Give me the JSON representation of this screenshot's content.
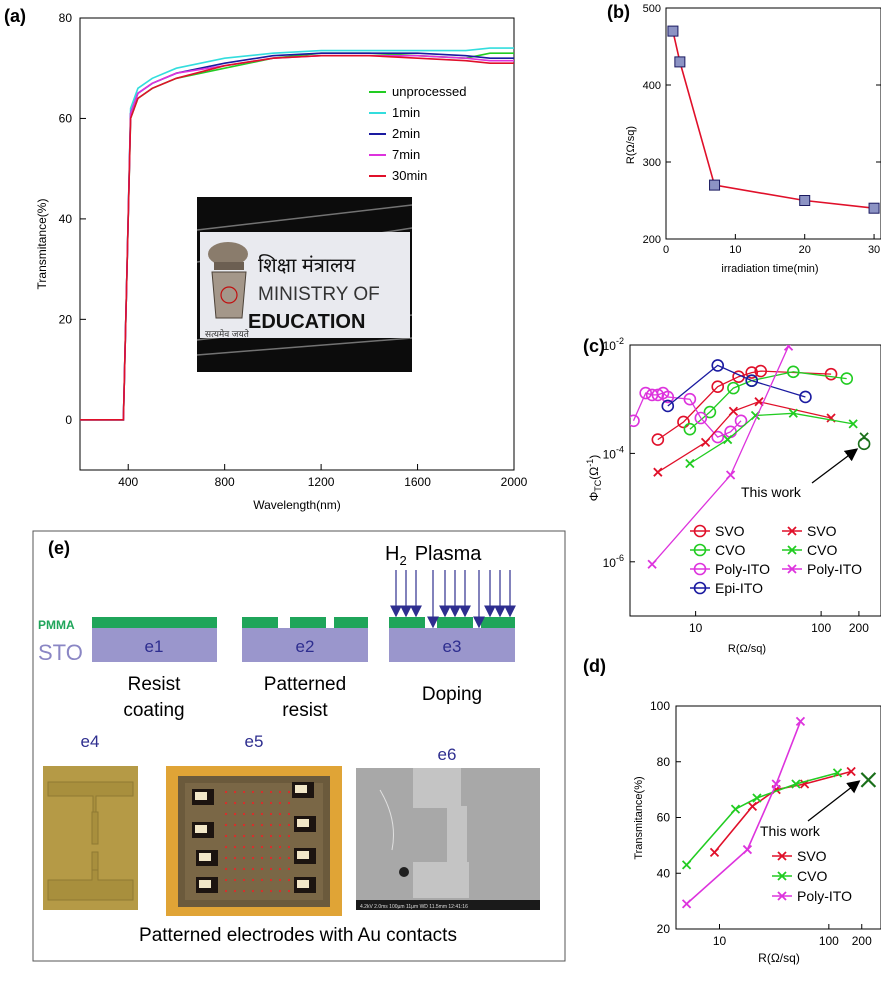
{
  "chart_data": [
    {
      "panel": "(a)",
      "type": "line",
      "xlabel": "Wavelength(nm)",
      "ylabel": "Transmitance(%)",
      "xlim": [
        200,
        2000
      ],
      "ylim": [
        -10,
        80
      ],
      "xticks": [
        400,
        800,
        1200,
        1600,
        2000
      ],
      "yticks": [
        0,
        20,
        40,
        60,
        80
      ],
      "legend_placement": "right",
      "series": [
        {
          "name": "unprocessed",
          "color": "#22cc22",
          "x": [
            200,
            380,
            395,
            410,
            440,
            500,
            600,
            800,
            1000,
            1200,
            1400,
            1600,
            1800,
            1900,
            2000
          ],
          "y": [
            0,
            0,
            30,
            60,
            64,
            66,
            68,
            70,
            72,
            73,
            73,
            72.5,
            72,
            73,
            73
          ]
        },
        {
          "name": "1min",
          "color": "#33dddd",
          "x": [
            200,
            380,
            395,
            410,
            440,
            500,
            600,
            800,
            1000,
            1200,
            1400,
            1600,
            1800,
            1900,
            2000
          ],
          "y": [
            0,
            0,
            30,
            62,
            66,
            68,
            70,
            72,
            73,
            73.5,
            73.5,
            73.5,
            73.5,
            74,
            74
          ]
        },
        {
          "name": "2min",
          "color": "#1a1aa0",
          "x": [
            200,
            380,
            395,
            410,
            440,
            500,
            600,
            800,
            1000,
            1200,
            1400,
            1600,
            1800,
            1900,
            2000
          ],
          "y": [
            0,
            0,
            30,
            61,
            65,
            67,
            69,
            71,
            72.5,
            73,
            73,
            73,
            72.5,
            72,
            72
          ]
        },
        {
          "name": "7min",
          "color": "#dd33dd",
          "x": [
            200,
            380,
            395,
            410,
            440,
            500,
            600,
            800,
            1000,
            1200,
            1400,
            1600,
            1800,
            1900,
            2000
          ],
          "y": [
            0,
            0,
            30,
            61,
            65,
            67,
            69,
            70.5,
            72,
            72.5,
            72.5,
            72.5,
            72,
            71.5,
            71.5
          ]
        },
        {
          "name": "30min",
          "color": "#e0102a",
          "x": [
            200,
            380,
            395,
            410,
            440,
            500,
            600,
            800,
            1000,
            1200,
            1400,
            1600,
            1800,
            1900,
            2000
          ],
          "y": [
            0,
            0,
            30,
            60,
            64,
            66,
            68,
            70.5,
            72,
            72.5,
            72.5,
            72,
            71.5,
            71,
            71
          ]
        }
      ],
      "inset_text": [
        "शिक्षा मंत्रालय",
        "MINISTRY OF",
        "EDUCATION",
        "सत्यमेव जयते"
      ]
    },
    {
      "panel": "(b)",
      "type": "line",
      "xlabel": "irradiation time(min)",
      "ylabel": "R(Ω/sq)",
      "xlim": [
        0,
        31
      ],
      "ylim": [
        200,
        500
      ],
      "xticks": [
        0,
        10,
        20,
        30
      ],
      "yticks": [
        200,
        300,
        400,
        500
      ],
      "series": [
        {
          "color": "#e0102a",
          "x": [
            1,
            2,
            7,
            20,
            30
          ],
          "y": [
            470,
            430,
            270,
            250,
            240
          ]
        }
      ]
    },
    {
      "panel": "(c)",
      "type": "scatter",
      "xlabel": "R(Ω/sq)",
      "ylabel_main": "Φ",
      "ylabel_sub": "TC",
      "ylabel_unit": "(Ω",
      "ylabel_exp": "-1",
      "xscale": "log",
      "yscale": "log",
      "xlim": [
        3,
        300
      ],
      "ylim": [
        1e-07,
        0.01
      ],
      "xticks": [
        10,
        100,
        200
      ],
      "xtick_labels": [
        "10",
        "100",
        "200"
      ],
      "yticks": [
        1e-06,
        0.0001,
        0.01
      ],
      "ytick_labels": [
        [
          "10",
          "-6"
        ],
        [
          "10",
          "-4"
        ],
        [
          "10",
          "-2"
        ]
      ],
      "annotation": "This work",
      "legend": [
        {
          "name": "SVO",
          "marker": "o",
          "color": "#e0102a"
        },
        {
          "name": "SVO",
          "marker": "x",
          "color": "#e0102a"
        },
        {
          "name": "CVO",
          "marker": "o",
          "color": "#22cc22"
        },
        {
          "name": "CVO",
          "marker": "x",
          "color": "#22cc22"
        },
        {
          "name": "Poly-ITO",
          "marker": "o",
          "color": "#dd33dd"
        },
        {
          "name": "Poly-ITO",
          "marker": "x",
          "color": "#dd33dd"
        },
        {
          "name": "Epi-ITO",
          "marker": "o",
          "color": "#1a1aa0"
        }
      ],
      "series": [
        {
          "label": "SVO circles",
          "color": "#e0102a",
          "marker": "o",
          "x": [
            5,
            8,
            15,
            22,
            28,
            33,
            120
          ],
          "y": [
            0.00018,
            0.00038,
            0.0017,
            0.0026,
            0.0031,
            0.0033,
            0.0029
          ]
        },
        {
          "label": "CVO circles",
          "color": "#22cc22",
          "marker": "o",
          "x": [
            9,
            13,
            20,
            28,
            60,
            160
          ],
          "y": [
            0.00028,
            0.00058,
            0.0016,
            0.0022,
            0.0032,
            0.0024
          ]
        },
        {
          "label": "Poly-ITO circles",
          "color": "#dd33dd",
          "marker": "o",
          "x": [
            3.2,
            4,
            4.5,
            5,
            5.5,
            6,
            9,
            11,
            15,
            19,
            23
          ],
          "y": [
            0.0004,
            0.0013,
            0.0012,
            0.0012,
            0.0013,
            0.0011,
            0.001,
            0.00045,
            0.0002,
            0.00025,
            0.0004
          ]
        },
        {
          "label": "Epi-ITO circles",
          "color": "#1a1aa0",
          "marker": "o",
          "x": [
            6,
            15,
            28,
            75
          ],
          "y": [
            0.00075,
            0.0042,
            0.0022,
            0.0011
          ]
        },
        {
          "label": "SVO crosses",
          "color": "#e0102a",
          "marker": "x",
          "x": [
            5,
            12,
            20,
            32,
            120
          ],
          "y": [
            4.5e-05,
            0.00016,
            0.0006,
            0.0009,
            0.00045
          ]
        },
        {
          "label": "CVO crosses",
          "color": "#22cc22",
          "marker": "x",
          "x": [
            9,
            18,
            30,
            60,
            180
          ],
          "y": [
            6.5e-05,
            0.00018,
            0.0005,
            0.00055,
            0.00035
          ]
        },
        {
          "label": "Poly-ITO crosses",
          "color": "#dd33dd",
          "marker": "x",
          "x": [
            4.5,
            19,
            55
          ],
          "y": [
            9e-07,
            4e-05,
            0.0095
          ]
        },
        {
          "label": "This work",
          "color": "#1a6f1a",
          "marker": "ox",
          "x": [
            220
          ],
          "y": [
            0.00015
          ]
        }
      ]
    },
    {
      "panel": "(d)",
      "type": "line",
      "xlabel": "R(Ω/sq)",
      "ylabel": "Transmitance(%)",
      "xscale": "log",
      "xlim": [
        4,
        300
      ],
      "ylim": [
        20,
        100
      ],
      "xticks": [
        10,
        100,
        200
      ],
      "yticks": [
        20,
        40,
        60,
        80,
        100
      ],
      "annotation": "This work",
      "series": [
        {
          "name": "SVO",
          "color": "#e0102a",
          "x": [
            9,
            20,
            33,
            60,
            160
          ],
          "y": [
            47.5,
            64,
            70,
            72,
            76.5
          ]
        },
        {
          "name": "CVO",
          "color": "#22cc22",
          "x": [
            5,
            14,
            22,
            50,
            120
          ],
          "y": [
            43,
            63,
            67,
            72,
            76
          ]
        },
        {
          "name": "Poly-ITO",
          "color": "#dd33dd",
          "x": [
            5,
            18,
            33,
            55
          ],
          "y": [
            29,
            48.5,
            72,
            94.5
          ]
        },
        {
          "label": "This work",
          "color": "#1a6f1a",
          "marker": "x",
          "x": [
            230
          ],
          "y": [
            73.5
          ]
        }
      ]
    }
  ],
  "panel_e": {
    "label": "(e)",
    "plasma": "Plasma",
    "h2_main": "H",
    "h2_sub": "2",
    "pmma": "PMMA",
    "sto": "STO",
    "steps": [
      {
        "id": "e1",
        "caption1": "Resist",
        "caption2": "coating"
      },
      {
        "id": "e2",
        "caption1": "Patterned",
        "caption2": "resist"
      },
      {
        "id": "e3",
        "caption1": "Doping",
        "caption2": ""
      }
    ],
    "photos": [
      "e4",
      "e5",
      "e6"
    ],
    "caption": "Patterned electrodes with Au contacts",
    "sem_footer": "4.2kV  2.0ms  100µm  11μm  WD 11.5mm  12:41:16"
  },
  "colors": {
    "pmma": "#1fa55a",
    "sto": "#9a96cc",
    "arrow": "#2e2e8f"
  }
}
